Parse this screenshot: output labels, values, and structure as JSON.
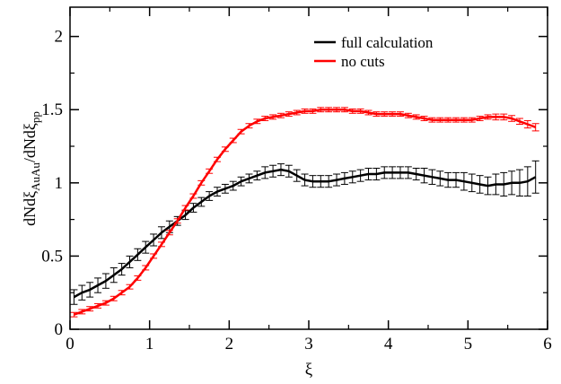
{
  "chart_data": {
    "type": "line",
    "title": "",
    "xlabel": "ξ",
    "ylabel": "dNdξ_AuAu/dNdξ_pp",
    "ylabel_parts": {
      "main": "dNdξ",
      "sub1": "AuAu",
      "mid": "/dNdξ",
      "sub2": "pp"
    },
    "xlim": [
      0,
      6
    ],
    "ylim": [
      0,
      2.2
    ],
    "xticks": [
      0,
      1,
      2,
      3,
      4,
      5,
      6
    ],
    "xtick_labels": [
      "0",
      "1",
      "2",
      "3",
      "4",
      "5",
      "6"
    ],
    "yticks": [
      0,
      0.5,
      1,
      1.5,
      2
    ],
    "ytick_labels": [
      "0",
      "0.5",
      "1",
      "1.5",
      "2"
    ],
    "grid": false,
    "legend_position": "top-right",
    "x": [
      0.05,
      0.15,
      0.25,
      0.35,
      0.45,
      0.55,
      0.65,
      0.75,
      0.85,
      0.95,
      1.05,
      1.15,
      1.25,
      1.35,
      1.45,
      1.55,
      1.65,
      1.75,
      1.85,
      1.95,
      2.05,
      2.15,
      2.25,
      2.35,
      2.45,
      2.55,
      2.65,
      2.75,
      2.85,
      2.95,
      3.05,
      3.15,
      3.25,
      3.35,
      3.45,
      3.55,
      3.65,
      3.75,
      3.85,
      3.95,
      4.05,
      4.15,
      4.25,
      4.35,
      4.45,
      4.55,
      4.65,
      4.75,
      4.85,
      4.95,
      5.05,
      5.15,
      5.25,
      5.35,
      5.45,
      5.55,
      5.65,
      5.75,
      5.85
    ],
    "series": [
      {
        "name": "full calculation",
        "color": "#000000",
        "values": [
          0.22,
          0.25,
          0.27,
          0.3,
          0.33,
          0.37,
          0.41,
          0.46,
          0.51,
          0.56,
          0.61,
          0.66,
          0.7,
          0.74,
          0.78,
          0.83,
          0.87,
          0.91,
          0.94,
          0.96,
          0.98,
          1.01,
          1.03,
          1.05,
          1.07,
          1.08,
          1.09,
          1.08,
          1.05,
          1.02,
          1.01,
          1.01,
          1.01,
          1.02,
          1.03,
          1.04,
          1.05,
          1.06,
          1.06,
          1.07,
          1.07,
          1.07,
          1.07,
          1.06,
          1.05,
          1.04,
          1.03,
          1.02,
          1.02,
          1.01,
          1.0,
          0.99,
          0.98,
          0.99,
          0.99,
          1.0,
          1.0,
          1.01,
          1.04
        ],
        "errors": [
          0.05,
          0.05,
          0.05,
          0.05,
          0.05,
          0.05,
          0.04,
          0.04,
          0.04,
          0.04,
          0.04,
          0.04,
          0.04,
          0.03,
          0.03,
          0.03,
          0.03,
          0.03,
          0.03,
          0.03,
          0.03,
          0.03,
          0.03,
          0.03,
          0.04,
          0.04,
          0.04,
          0.04,
          0.04,
          0.04,
          0.04,
          0.04,
          0.04,
          0.04,
          0.04,
          0.04,
          0.04,
          0.04,
          0.04,
          0.04,
          0.04,
          0.04,
          0.04,
          0.04,
          0.05,
          0.05,
          0.05,
          0.05,
          0.05,
          0.06,
          0.06,
          0.06,
          0.06,
          0.07,
          0.08,
          0.08,
          0.09,
          0.1,
          0.11
        ]
      },
      {
        "name": "no cuts",
        "color": "#ff0000",
        "values": [
          0.1,
          0.12,
          0.14,
          0.16,
          0.18,
          0.21,
          0.25,
          0.29,
          0.35,
          0.42,
          0.5,
          0.58,
          0.66,
          0.74,
          0.83,
          0.91,
          1.0,
          1.08,
          1.16,
          1.23,
          1.29,
          1.35,
          1.39,
          1.42,
          1.44,
          1.45,
          1.46,
          1.47,
          1.48,
          1.49,
          1.49,
          1.5,
          1.5,
          1.5,
          1.5,
          1.49,
          1.49,
          1.48,
          1.47,
          1.47,
          1.47,
          1.47,
          1.46,
          1.45,
          1.44,
          1.43,
          1.43,
          1.43,
          1.43,
          1.43,
          1.43,
          1.44,
          1.45,
          1.45,
          1.45,
          1.44,
          1.42,
          1.4,
          1.38
        ],
        "errors": [
          0.015,
          0.015,
          0.015,
          0.015,
          0.015,
          0.015,
          0.015,
          0.015,
          0.015,
          0.015,
          0.015,
          0.015,
          0.015,
          0.015,
          0.015,
          0.015,
          0.015,
          0.015,
          0.015,
          0.015,
          0.015,
          0.015,
          0.015,
          0.015,
          0.015,
          0.015,
          0.015,
          0.015,
          0.015,
          0.015,
          0.015,
          0.015,
          0.015,
          0.015,
          0.015,
          0.015,
          0.015,
          0.015,
          0.015,
          0.015,
          0.015,
          0.015,
          0.015,
          0.015,
          0.015,
          0.015,
          0.015,
          0.015,
          0.015,
          0.015,
          0.015,
          0.015,
          0.015,
          0.02,
          0.02,
          0.02,
          0.02,
          0.025,
          0.025
        ]
      }
    ]
  }
}
